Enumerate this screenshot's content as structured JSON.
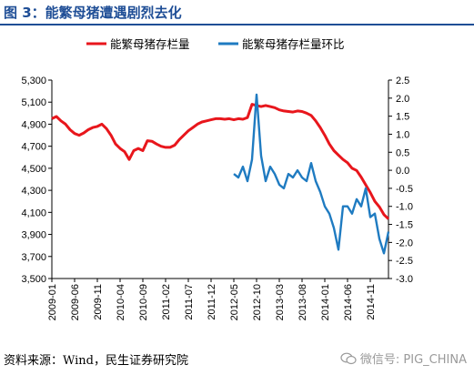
{
  "header": {
    "title": "图 3：能繁母猪遭遇剧烈去化"
  },
  "footer": {
    "source": "资料来源：Wind，民生证券研究院",
    "watermark": "微信号: PIG_CHINA"
  },
  "colors": {
    "title": "#1f4e96",
    "series_red": "#e8161c",
    "series_blue": "#1f7bc1"
  },
  "chart_data": {
    "type": "line",
    "legend_position": "top",
    "grid": false,
    "x_ticks": [
      "2009-01",
      "2009-06",
      "2009-11",
      "2010-04",
      "2010-09",
      "2011-02",
      "2011-07",
      "2011-12",
      "2012-05",
      "2012-10",
      "2013-03",
      "2013-08",
      "2014-01",
      "2014-06",
      "2014-11"
    ],
    "x_range": [
      "2009-01",
      "2015-03"
    ],
    "y_left": {
      "ticks": [
        "3,500",
        "3,700",
        "3,900",
        "4,100",
        "4,300",
        "4,500",
        "4,700",
        "4,900",
        "5,100",
        "5,300"
      ],
      "lim": [
        3500,
        5300
      ]
    },
    "y_right": {
      "ticks": [
        "-3.0",
        "-2.5",
        "-2.0",
        "-1.5",
        "-1.0",
        "-0.5",
        "0.0",
        "0.5",
        "1.0",
        "1.5",
        "2.0",
        "2.5"
      ],
      "lim": [
        -3.0,
        2.5
      ]
    },
    "series": [
      {
        "name": "能繁母猪存栏量",
        "axis": "left",
        "color": "#e8161c",
        "x": [
          "2009-01",
          "2009-02",
          "2009-03",
          "2009-04",
          "2009-05",
          "2009-06",
          "2009-07",
          "2009-08",
          "2009-09",
          "2009-10",
          "2009-11",
          "2009-12",
          "2010-01",
          "2010-02",
          "2010-03",
          "2010-04",
          "2010-05",
          "2010-06",
          "2010-07",
          "2010-08",
          "2010-09",
          "2010-10",
          "2010-11",
          "2010-12",
          "2011-01",
          "2011-02",
          "2011-03",
          "2011-04",
          "2011-05",
          "2011-06",
          "2011-07",
          "2011-08",
          "2011-09",
          "2011-10",
          "2011-11",
          "2011-12",
          "2012-01",
          "2012-02",
          "2012-03",
          "2012-04",
          "2012-05",
          "2012-06",
          "2012-07",
          "2012-08",
          "2012-09",
          "2012-10",
          "2012-11",
          "2012-12",
          "2013-01",
          "2013-02",
          "2013-03",
          "2013-04",
          "2013-05",
          "2013-06",
          "2013-07",
          "2013-08",
          "2013-09",
          "2013-10",
          "2013-11",
          "2013-12",
          "2014-01",
          "2014-02",
          "2014-03",
          "2014-04",
          "2014-05",
          "2014-06",
          "2014-07",
          "2014-08",
          "2014-09",
          "2014-10",
          "2014-11",
          "2014-12",
          "2015-01",
          "2015-02",
          "2015-03"
        ],
        "values": [
          4950,
          4970,
          4930,
          4900,
          4850,
          4815,
          4800,
          4820,
          4850,
          4870,
          4880,
          4900,
          4860,
          4800,
          4720,
          4680,
          4650,
          4580,
          4660,
          4680,
          4660,
          4750,
          4745,
          4720,
          4700,
          4690,
          4690,
          4710,
          4760,
          4800,
          4840,
          4870,
          4900,
          4920,
          4930,
          4940,
          4950,
          4950,
          4945,
          4950,
          4940,
          4950,
          4945,
          4960,
          5080,
          5070,
          5060,
          5070,
          5060,
          5050,
          5030,
          5020,
          5015,
          5010,
          5020,
          5015,
          5000,
          4980,
          4930,
          4870,
          4800,
          4720,
          4660,
          4620,
          4580,
          4550,
          4500,
          4480,
          4420,
          4350,
          4280,
          4200,
          4150,
          4080,
          4040
        ]
      },
      {
        "name": "能繁母猪存栏量环比",
        "axis": "right",
        "color": "#1f7bc1",
        "x": [
          "2012-05",
          "2012-06",
          "2012-07",
          "2012-08",
          "2012-09",
          "2012-10",
          "2012-11",
          "2012-12",
          "2013-01",
          "2013-02",
          "2013-03",
          "2013-04",
          "2013-05",
          "2013-06",
          "2013-07",
          "2013-08",
          "2013-09",
          "2013-10",
          "2013-11",
          "2013-12",
          "2014-01",
          "2014-02",
          "2014-03",
          "2014-04",
          "2014-05",
          "2014-06",
          "2014-07",
          "2014-08",
          "2014-09",
          "2014-10",
          "2014-11",
          "2014-12",
          "2015-01",
          "2015-02",
          "2015-03"
        ],
        "values": [
          -0.1,
          -0.2,
          0.1,
          -0.3,
          0.3,
          2.1,
          0.4,
          -0.3,
          0.1,
          -0.1,
          -0.4,
          -0.5,
          -0.1,
          -0.2,
          0.0,
          -0.2,
          -0.3,
          0.2,
          -0.3,
          -0.6,
          -1.0,
          -1.2,
          -1.6,
          -2.2,
          -1.0,
          -1.0,
          -1.2,
          -0.8,
          -1.0,
          -0.5,
          -1.3,
          -1.2,
          -1.9,
          -2.3,
          -1.7
        ]
      }
    ]
  }
}
